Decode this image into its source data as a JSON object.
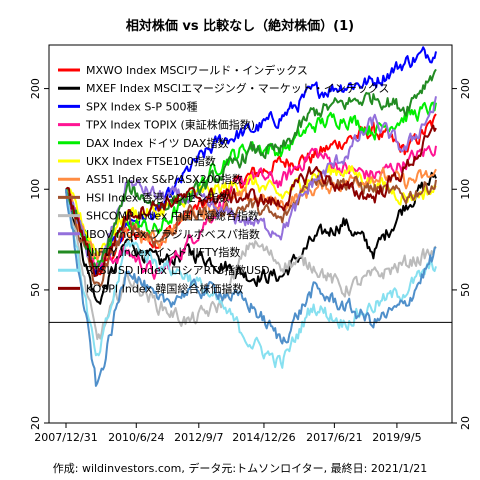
{
  "chart_data": {
    "type": "line",
    "title": "相対株価 vs 比較なし（絶対株価）(1)",
    "caption": "作成: wildinvestors.com, データ元:トムソンロイター, 最終日: 2021/1/21",
    "y_scale": "log",
    "ylim": [
      20,
      270
    ],
    "y_ticks": [
      20,
      50,
      100,
      200
    ],
    "x_ticks": [
      "2007/12/31",
      "2010/6/24",
      "2012/9/7",
      "2014/12/26",
      "2017/6/21",
      "2019/9/5"
    ],
    "xlim": [
      "2007-12-31",
      "2021-01-21"
    ],
    "reference_line": 40,
    "grid": false,
    "legend_position": "top-left",
    "series": [
      {
        "name": "MXWO Index MSCIワールド・インデックス",
        "color": "#ff0000",
        "values": [
          100,
          55,
          75,
          70,
          85,
          95,
          110,
          120,
          125,
          140,
          150,
          130,
          160
        ]
      },
      {
        "name": "MXEF Index MSCIエマージング・マーケット・インデックス",
        "color": "#000000",
        "values": [
          100,
          45,
          70,
          60,
          65,
          60,
          55,
          55,
          70,
          80,
          65,
          90,
          110
        ]
      },
      {
        "name": "SPX Index S-P 500種",
        "color": "#0000ff",
        "values": [
          100,
          55,
          80,
          85,
          115,
          140,
          150,
          165,
          195,
          205,
          210,
          240,
          260
        ]
      },
      {
        "name": "TPX Index TOPIX (東証株価指数)",
        "color": "#ff1493",
        "values": [
          100,
          60,
          65,
          55,
          70,
          90,
          110,
          105,
          130,
          115,
          110,
          120,
          135
        ]
      },
      {
        "name": "DAX Index ドイツ DAX指数",
        "color": "#00ee00",
        "values": [
          100,
          60,
          80,
          75,
          95,
          120,
          135,
          130,
          155,
          165,
          150,
          165,
          175
        ]
      },
      {
        "name": "UKX Index FTSE100指数",
        "color": "#ffff00",
        "values": [
          100,
          65,
          85,
          85,
          95,
          100,
          105,
          95,
          110,
          115,
          105,
          95,
          100
        ]
      },
      {
        "name": "AS51 Index S&P/ASX200指数",
        "color": "#ff8c42",
        "values": [
          100,
          60,
          75,
          70,
          85,
          90,
          95,
          90,
          100,
          105,
          110,
          105,
          110
        ]
      },
      {
        "name": "HSI Index 香港ハンセン指数",
        "color": "#a0522d",
        "values": [
          100,
          50,
          80,
          70,
          85,
          85,
          90,
          80,
          110,
          105,
          100,
          95,
          105
        ]
      },
      {
        "name": "SHCOMP Index 中国上海総合指数",
        "color": "#bbbbbb",
        "values": [
          100,
          35,
          55,
          45,
          40,
          45,
          70,
          60,
          60,
          50,
          55,
          60,
          65
        ]
      },
      {
        "name": "IBOV Index ブラジルボベスパ指数",
        "color": "#9370db",
        "values": [
          100,
          55,
          105,
          95,
          95,
          85,
          80,
          75,
          105,
          125,
          160,
          130,
          180
        ]
      },
      {
        "name": "NIFTY Index インドNIFTY指数",
        "color": "#228b22",
        "values": [
          100,
          55,
          100,
          90,
          95,
          110,
          130,
          130,
          170,
          180,
          190,
          175,
          230
        ]
      },
      {
        "name": "RTSIUSD Index ロシアRTS指数USD",
        "color": "#87e0f0",
        "values": [
          100,
          30,
          70,
          60,
          55,
          45,
          35,
          30,
          45,
          40,
          45,
          50,
          60
        ]
      },
      {
        "name": "KOSPI Index 韓国総合株価指数",
        "color": "#8b0000",
        "values": [
          100,
          55,
          85,
          90,
          95,
          95,
          95,
          90,
          115,
          100,
          95,
          115,
          150
        ]
      },
      {
        "name": "",
        "color": "#4f8fca",
        "values": [
          100,
          25,
          60,
          45,
          50,
          50,
          45,
          35,
          50,
          45,
          40,
          45,
          65
        ]
      }
    ]
  }
}
